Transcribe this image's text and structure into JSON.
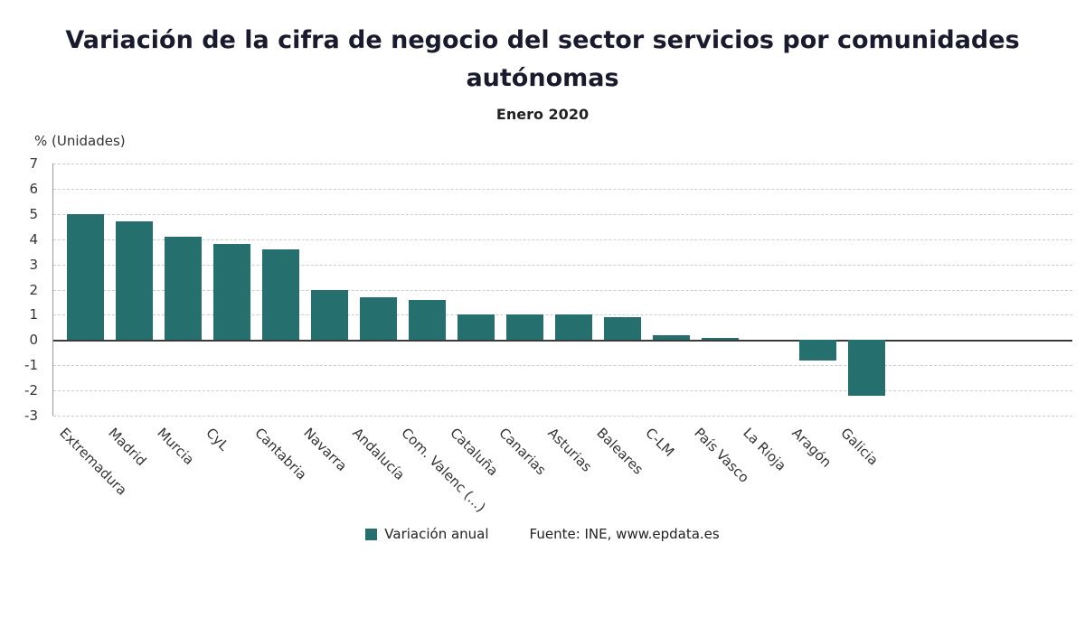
{
  "header": {
    "title": "Variación de la cifra de negocio del sector servicios por comunidades autónomas",
    "subtitle": "Enero 2020"
  },
  "axis": {
    "unit_label": "% (Unidades)"
  },
  "legend": {
    "series_label": "Variación anual",
    "source": "Fuente: INE, www.epdata.es"
  },
  "colors": {
    "bar": "#266f6f",
    "grid": "#cccccc",
    "zero_line": "#3a3a3a",
    "title": "#1a1a2e",
    "text": "#333333"
  },
  "chart_data": {
    "type": "bar",
    "title": "Variación de la cifra de negocio del sector servicios por comunidades autónomas",
    "subtitle": "Enero 2020",
    "ylabel": "% (Unidades)",
    "xlabel": "",
    "categories": [
      "Extremadura",
      "Madrid",
      "Murcia",
      "CyL",
      "Cantabria",
      "Navarra",
      "Andalucía",
      "Com. Valenc (...)",
      "Cataluña",
      "Canarias",
      "Asturias",
      "Baleares",
      "C-LM",
      "País Vasco",
      "La Rioja",
      "Aragón",
      "Galicia"
    ],
    "series": [
      {
        "name": "Variación anual",
        "values": [
          5.0,
          4.7,
          4.1,
          3.8,
          3.6,
          2.0,
          1.7,
          1.6,
          1.0,
          1.0,
          1.0,
          0.9,
          0.2,
          0.1,
          0.0,
          -0.8,
          -2.2
        ]
      }
    ],
    "ylim": [
      -3,
      7
    ],
    "ytick_step": 1,
    "grid": "horizontal-dashed",
    "legend_position": "bottom-center",
    "source": "Fuente: INE, www.epdata.es"
  }
}
